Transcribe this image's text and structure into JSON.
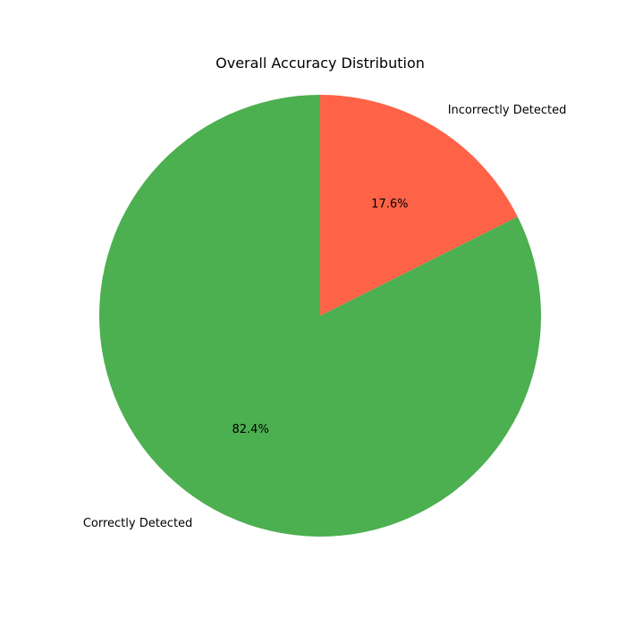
{
  "chart_data": {
    "type": "pie",
    "title": "Overall Accuracy Distribution",
    "start_angle": 90,
    "direction": "counterclockwise",
    "slices": [
      {
        "label": "Correctly Detected",
        "value": 82.4,
        "pct_label": "82.4%",
        "color": "#4caf50"
      },
      {
        "label": "Incorrectly Detected",
        "value": 17.6,
        "pct_label": "17.6%",
        "color": "#ff6347"
      }
    ]
  }
}
